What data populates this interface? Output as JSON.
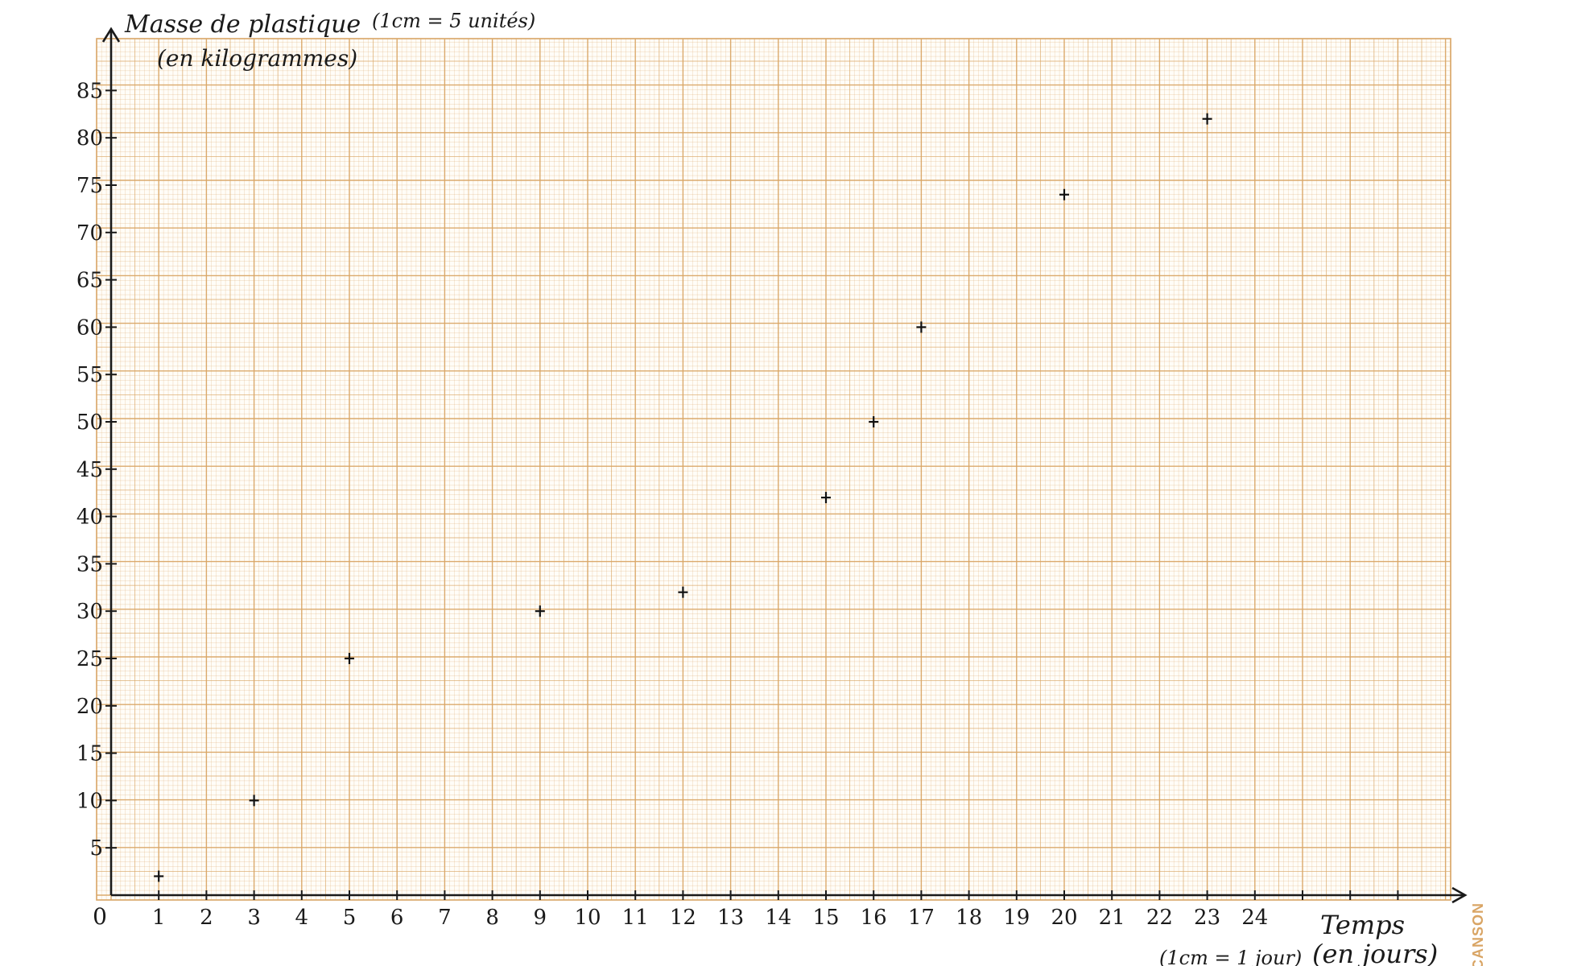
{
  "chart_data": {
    "type": "scatter",
    "title": "",
    "ylabel_line1": "Masse de plastique",
    "ylabel_line2": "(en kilogrammes)",
    "y_scale_note": "(1cm = 5 unités)",
    "xlabel": "Temps",
    "x_scale_note": "(1cm = 1 jour)",
    "xlabel_unit": "(en jours)",
    "origin_label": "0",
    "x_ticks": [
      "1",
      "2",
      "3",
      "4",
      "5",
      "6",
      "7",
      "8",
      "9",
      "10",
      "11",
      "12",
      "13",
      "14",
      "15",
      "16",
      "17",
      "18",
      "19",
      "20",
      "21",
      "22",
      "23",
      "24"
    ],
    "y_ticks": [
      "5",
      "10",
      "15",
      "20",
      "25",
      "30",
      "35",
      "40",
      "45",
      "50",
      "55",
      "60",
      "65",
      "70",
      "75",
      "80",
      "85"
    ],
    "xlim": [
      0,
      28
    ],
    "ylim": [
      0,
      90
    ],
    "grid": true,
    "marker": "+",
    "x": [
      1,
      3,
      5,
      9,
      12,
      15,
      16,
      17,
      20,
      23
    ],
    "y": [
      2,
      10,
      25,
      30,
      32,
      42,
      50,
      60,
      74,
      82
    ]
  },
  "paper": {
    "brand": "CANSON",
    "grid_color": "#d9a565"
  }
}
